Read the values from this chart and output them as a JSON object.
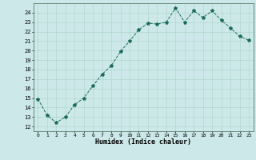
{
  "x": [
    0,
    1,
    2,
    3,
    4,
    5,
    6,
    7,
    8,
    9,
    10,
    11,
    12,
    13,
    14,
    15,
    16,
    17,
    18,
    19,
    20,
    21,
    22,
    23
  ],
  "y": [
    14.9,
    13.2,
    12.4,
    13.0,
    14.3,
    15.0,
    16.3,
    17.5,
    18.4,
    19.9,
    21.0,
    22.2,
    22.9,
    22.8,
    23.0,
    24.5,
    23.0,
    24.2,
    23.5,
    24.2,
    23.2,
    22.4,
    21.5,
    21.1
  ],
  "line_color": "#1a6b5a",
  "marker": "*",
  "marker_size": 3,
  "xlabel": "Humidex (Indice chaleur)",
  "ylabel_ticks": [
    12,
    13,
    14,
    15,
    16,
    17,
    18,
    19,
    20,
    21,
    22,
    23,
    24
  ],
  "xlim": [
    -0.5,
    23.5
  ],
  "ylim": [
    11.5,
    25.0
  ],
  "background_color": "#cce8e8",
  "grid_color": "#b0d8cc",
  "linewidth": 0.7
}
